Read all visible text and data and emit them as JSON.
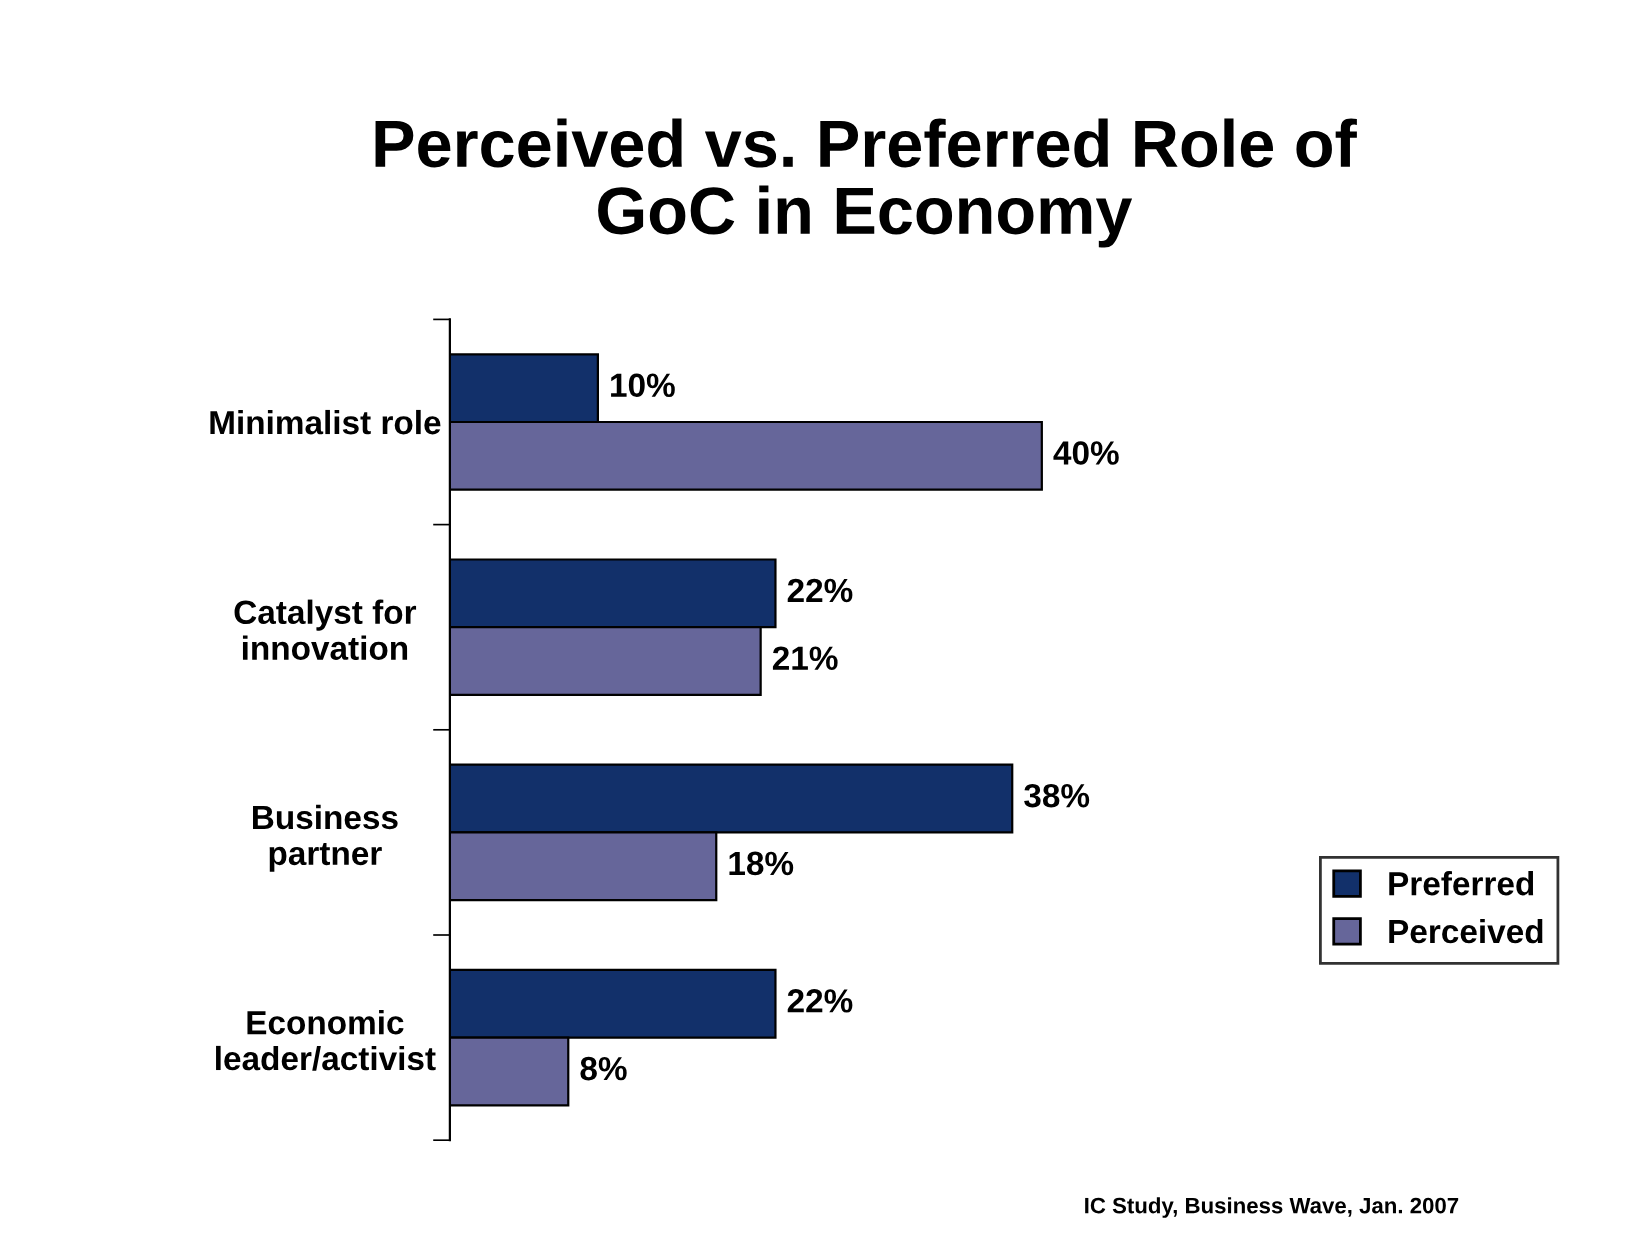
{
  "chart_data": {
    "type": "bar",
    "orientation": "horizontal",
    "title": "Perceived vs. Preferred Role of\nGoC in Economy",
    "categories": [
      "Minimalist role",
      "Catalyst for\ninnovation",
      "Business\npartner",
      "Economic\nleader/activist"
    ],
    "series": [
      {
        "name": "Preferred",
        "color": "#12306a",
        "values": [
          10,
          22,
          38,
          22
        ],
        "value_labels": [
          "10%",
          "22%",
          "38%",
          "22%"
        ]
      },
      {
        "name": "Perceived",
        "color": "#66669a",
        "values": [
          40,
          21,
          18,
          8
        ],
        "value_labels": [
          "40%",
          "21%",
          "18%",
          "8%"
        ]
      }
    ],
    "legend": "right",
    "grid": false,
    "annotations": [
      "IC Study, Business Wave, Jan. 2007"
    ]
  }
}
